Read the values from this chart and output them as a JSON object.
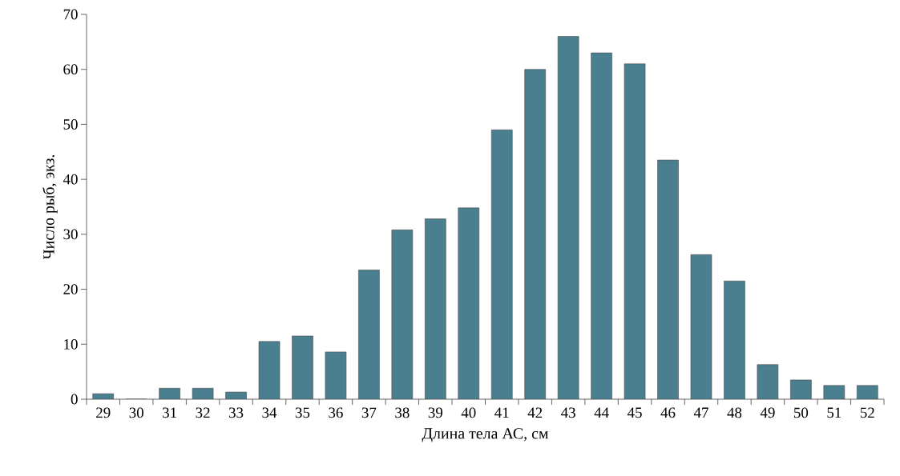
{
  "chart_data": {
    "type": "bar",
    "xlabel": "Длина тела АС, см",
    "ylabel": "Число рыб, экз.",
    "categories": [
      "29",
      "30",
      "31",
      "32",
      "33",
      "34",
      "35",
      "36",
      "37",
      "38",
      "39",
      "40",
      "41",
      "42",
      "43",
      "44",
      "45",
      "46",
      "47",
      "48",
      "49",
      "50",
      "51",
      "52"
    ],
    "values": [
      1,
      0,
      2,
      2,
      1.3,
      10.5,
      11.5,
      8.6,
      23.5,
      30.8,
      32.8,
      34.8,
      49,
      60,
      66,
      63,
      61,
      43.5,
      26.3,
      21.5,
      6.3,
      3.5,
      2.5,
      2.5
    ],
    "color": "#4a7f8f",
    "ylim": [
      0,
      70
    ],
    "yticks": [
      0,
      10,
      20,
      30,
      40,
      50,
      60,
      70
    ]
  }
}
